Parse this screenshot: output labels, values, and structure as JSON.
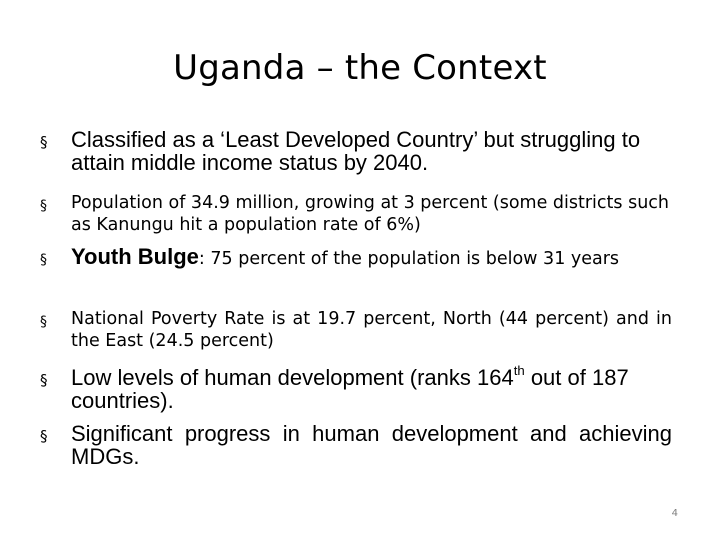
{
  "slide": {
    "title": "Uganda – the Context",
    "bullet_marker": "§",
    "bullets": [
      {
        "text": "Classified as a ‘Least Developed Country’ but struggling to attain middle income status by 2040."
      },
      {
        "text": "Population  of 34.9 million, growing at 3 percent (some districts such as Kanungu hit a population rate of 6%)"
      },
      {
        "lead": "Youth Bulge",
        "rest": ": 75 percent of the population is below 31 years"
      },
      {
        "text": "National Poverty Rate is at 19.7 percent, North (44 percent) and in the East (24.5 percent)"
      },
      {
        "pre": "Low levels of human development (ranks 164",
        "sup": "th",
        "post": " out of 187 countries)."
      },
      {
        "text": "Significant progress in human development and achieving MDGs."
      }
    ],
    "page_number": "4"
  }
}
